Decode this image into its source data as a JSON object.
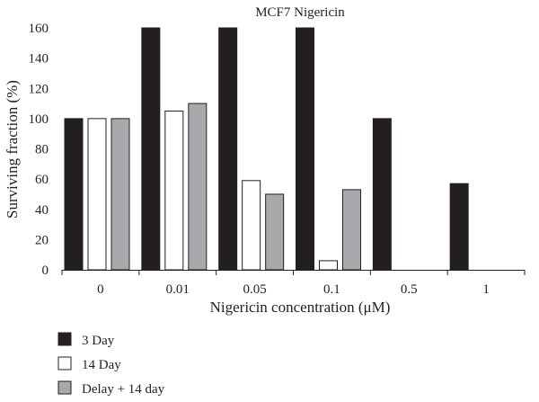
{
  "chart_data": {
    "type": "bar",
    "title": "MCF7 Nigericin",
    "xlabel": "Nigericin concentration (μM)",
    "ylabel": "Surviving fraction (%)",
    "ylim": [
      0,
      160
    ],
    "yticks": [
      0,
      20,
      40,
      60,
      80,
      100,
      120,
      140,
      160
    ],
    "categories": [
      "0",
      "0.01",
      "0.05",
      "0.1",
      "0.5",
      "1"
    ],
    "series": [
      {
        "name": "3 Day",
        "color": "#231f20",
        "values": [
          100,
          160,
          160,
          160,
          100,
          57
        ]
      },
      {
        "name": "14 Day",
        "color": "#ffffff",
        "values": [
          100,
          105,
          59,
          6,
          0,
          0
        ]
      },
      {
        "name": "Delay + 14 day",
        "color": "#a7a9ac",
        "values": [
          100,
          110,
          50,
          53,
          0,
          0
        ]
      }
    ],
    "grid": false,
    "legend_position": "bottom-left"
  }
}
